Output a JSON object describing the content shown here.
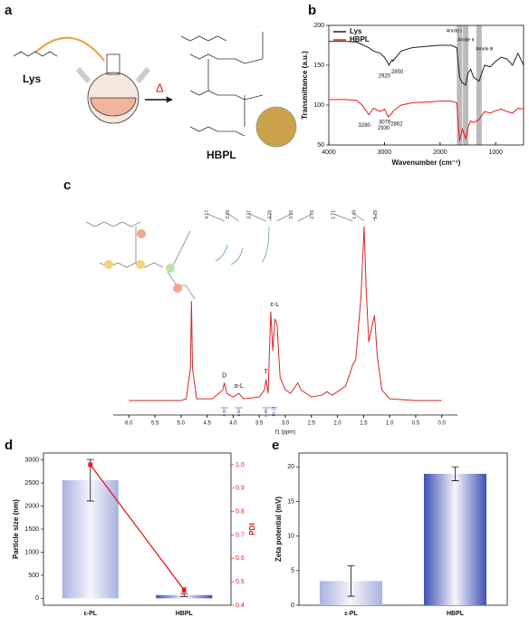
{
  "panel_labels": [
    "a",
    "b",
    "c",
    "d",
    "e"
  ],
  "scheme": {
    "reactant": "Lys",
    "product": "HBPL",
    "heat": "Δ"
  },
  "chart_data": [
    {
      "type": "line",
      "xlabel": "Wavenumber (cm⁻¹)",
      "ylabel": "Transmittance (a.u.)",
      "xlim": [
        4000,
        500
      ],
      "ylim": [
        50,
        200
      ],
      "xticks": [
        4000,
        3000,
        2000,
        1000
      ],
      "yticks": [
        50,
        100,
        150,
        200
      ],
      "legend": "upper left",
      "x": [
        4000,
        3700,
        3500,
        3400,
        3280,
        3200,
        3076,
        3000,
        2930,
        2920,
        2862,
        2850,
        2700,
        2500,
        2200,
        2000,
        1800,
        1700,
        1650,
        1600,
        1540,
        1500,
        1450,
        1400,
        1300,
        1200,
        1100,
        1000,
        900,
        800,
        700,
        600,
        500
      ],
      "series": [
        {
          "name": "Lys",
          "color": "#222222",
          "values": [
            180,
            180,
            179,
            176,
            172,
            168,
            165,
            160,
            152,
            150,
            157,
            155,
            168,
            172,
            174,
            175,
            175,
            172,
            135,
            128,
            125,
            140,
            145,
            135,
            130,
            150,
            148,
            155,
            160,
            158,
            150,
            165,
            150
          ]
        },
        {
          "name": "HBPL",
          "color": "#e31a1c",
          "values": [
            107,
            107,
            106,
            100,
            88,
            96,
            92,
            95,
            85,
            86,
            90,
            92,
            100,
            103,
            104,
            105,
            105,
            103,
            55,
            70,
            58,
            72,
            80,
            78,
            82,
            92,
            90,
            93,
            95,
            92,
            90,
            96,
            95
          ]
        }
      ],
      "annotations": [
        {
          "label": "2920",
          "x": 2920,
          "y": 150
        },
        {
          "label": "2850",
          "x": 2850,
          "y": 155
        },
        {
          "label": "3280",
          "x": 3280,
          "y": 88
        },
        {
          "label": "3076",
          "x": 3076,
          "y": 92
        },
        {
          "label": "2930",
          "x": 2930,
          "y": 85
        },
        {
          "label": "2862",
          "x": 2862,
          "y": 90
        }
      ],
      "bands": [
        {
          "label": "Amide Ⅰ",
          "x": 1650
        },
        {
          "label": "Amide Ⅱ",
          "x": 1540
        },
        {
          "label": "Amide Ⅲ",
          "x": 1300
        }
      ]
    },
    {
      "type": "nmr",
      "xlabel": "f1 (ppm)",
      "xlim": [
        6.3,
        -0.3
      ],
      "color": "#d62728",
      "xticks": [
        {
          "value": 6,
          "label": "6.0"
        },
        {
          "value": 5.5,
          "label": "5.5"
        },
        {
          "value": 5,
          "label": "5.0"
        },
        {
          "value": 4.5,
          "label": "4.5"
        },
        {
          "value": 4,
          "label": "4.0"
        },
        {
          "value": 3.5,
          "label": "3.5"
        },
        {
          "value": 3,
          "label": "3.0"
        },
        {
          "value": 2.5,
          "label": "2.5"
        },
        {
          "value": 2,
          "label": "2.0"
        },
        {
          "value": 1.5,
          "label": "1.5"
        },
        {
          "value": 1,
          "label": "1.0"
        },
        {
          "value": 0.5,
          "label": "0.5"
        },
        {
          "value": 0,
          "label": "0.0"
        }
      ],
      "x": [
        6.0,
        5.0,
        4.9,
        4.82,
        4.8,
        4.78,
        4.7,
        4.4,
        4.2,
        4.17,
        4.12,
        4.0,
        3.89,
        3.8,
        3.5,
        3.4,
        3.37,
        3.33,
        3.28,
        3.24,
        3.2,
        3.16,
        3.1,
        3.0,
        2.9,
        2.76,
        2.7,
        2.5,
        2.3,
        2.2,
        2.1,
        1.95,
        1.85,
        1.75,
        1.71,
        1.65,
        1.55,
        1.49,
        1.45,
        1.4,
        1.33,
        1.29,
        1.24,
        1.15,
        1.0,
        0.5,
        0.0
      ],
      "values": [
        2,
        2,
        3,
        20,
        58,
        20,
        3,
        3,
        8,
        12,
        6,
        4,
        6,
        3,
        4,
        8,
        14,
        6,
        52,
        30,
        48,
        45,
        15,
        8,
        6,
        12,
        8,
        4,
        5,
        7,
        5,
        8,
        10,
        18,
        22,
        25,
        60,
        100,
        65,
        35,
        45,
        50,
        28,
        8,
        3,
        2,
        2
      ],
      "peak_labels": [
        4.17,
        3.89,
        3.37,
        3.28,
        3.16,
        2.76,
        1.71,
        1.49,
        1.29
      ],
      "assignments": [
        {
          "label": "D",
          "x": 4.17,
          "y": 12
        },
        {
          "label": "α-L",
          "x": 3.89,
          "y": 6
        },
        {
          "label": "T",
          "x": 3.37,
          "y": 14
        },
        {
          "label": "ε-L",
          "x": 3.2,
          "y": 52
        }
      ],
      "integrals": [
        {
          "x": 4.17,
          "value": 1.28,
          "label": "1.28"
        },
        {
          "x": 3.89,
          "value": 1,
          "label": "1.00"
        },
        {
          "x": 3.37,
          "value": 0.96,
          "label": "0.96"
        },
        {
          "x": 3.22,
          "value": 10.13,
          "label": "10.13"
        }
      ]
    },
    {
      "type": "bar_line",
      "categories": [
        "ε-PL",
        "HBPL"
      ],
      "ylabel": "Particle size (nm)",
      "y2label": "PDI",
      "ylim": [
        -150,
        3150
      ],
      "yticks": [
        0,
        500,
        1000,
        1500,
        2000,
        2500,
        3000
      ],
      "y2lim": [
        0.4,
        1.05
      ],
      "y2ticks": [
        0.4,
        0.5,
        0.6,
        0.7,
        0.8,
        0.9,
        {
          "value": 1,
          "label": "1.0"
        }
      ],
      "series": [
        {
          "colors": [
            "#a9b2e0",
            "#3f51b5"
          ],
          "values": [
            2560,
            70
          ],
          "errors": [
            450,
            30
          ]
        },
        {
          "axis": "y2",
          "color": "#e31a1c",
          "values": [
            1.0,
            0.465
          ],
          "errors": [
            0.008,
            0.01
          ]
        }
      ]
    },
    {
      "type": "bar",
      "categories": [
        "ε-PL",
        "HBPL"
      ],
      "ylabel": "Zeta potential (mV)",
      "ylim": [
        0,
        22
      ],
      "yticks": [
        0,
        5,
        10,
        15,
        20
      ],
      "colors": [
        "#a9b2e0",
        "#3f51b5"
      ],
      "values": [
        3.5,
        19
      ],
      "errors": [
        2.2,
        1
      ]
    }
  ]
}
